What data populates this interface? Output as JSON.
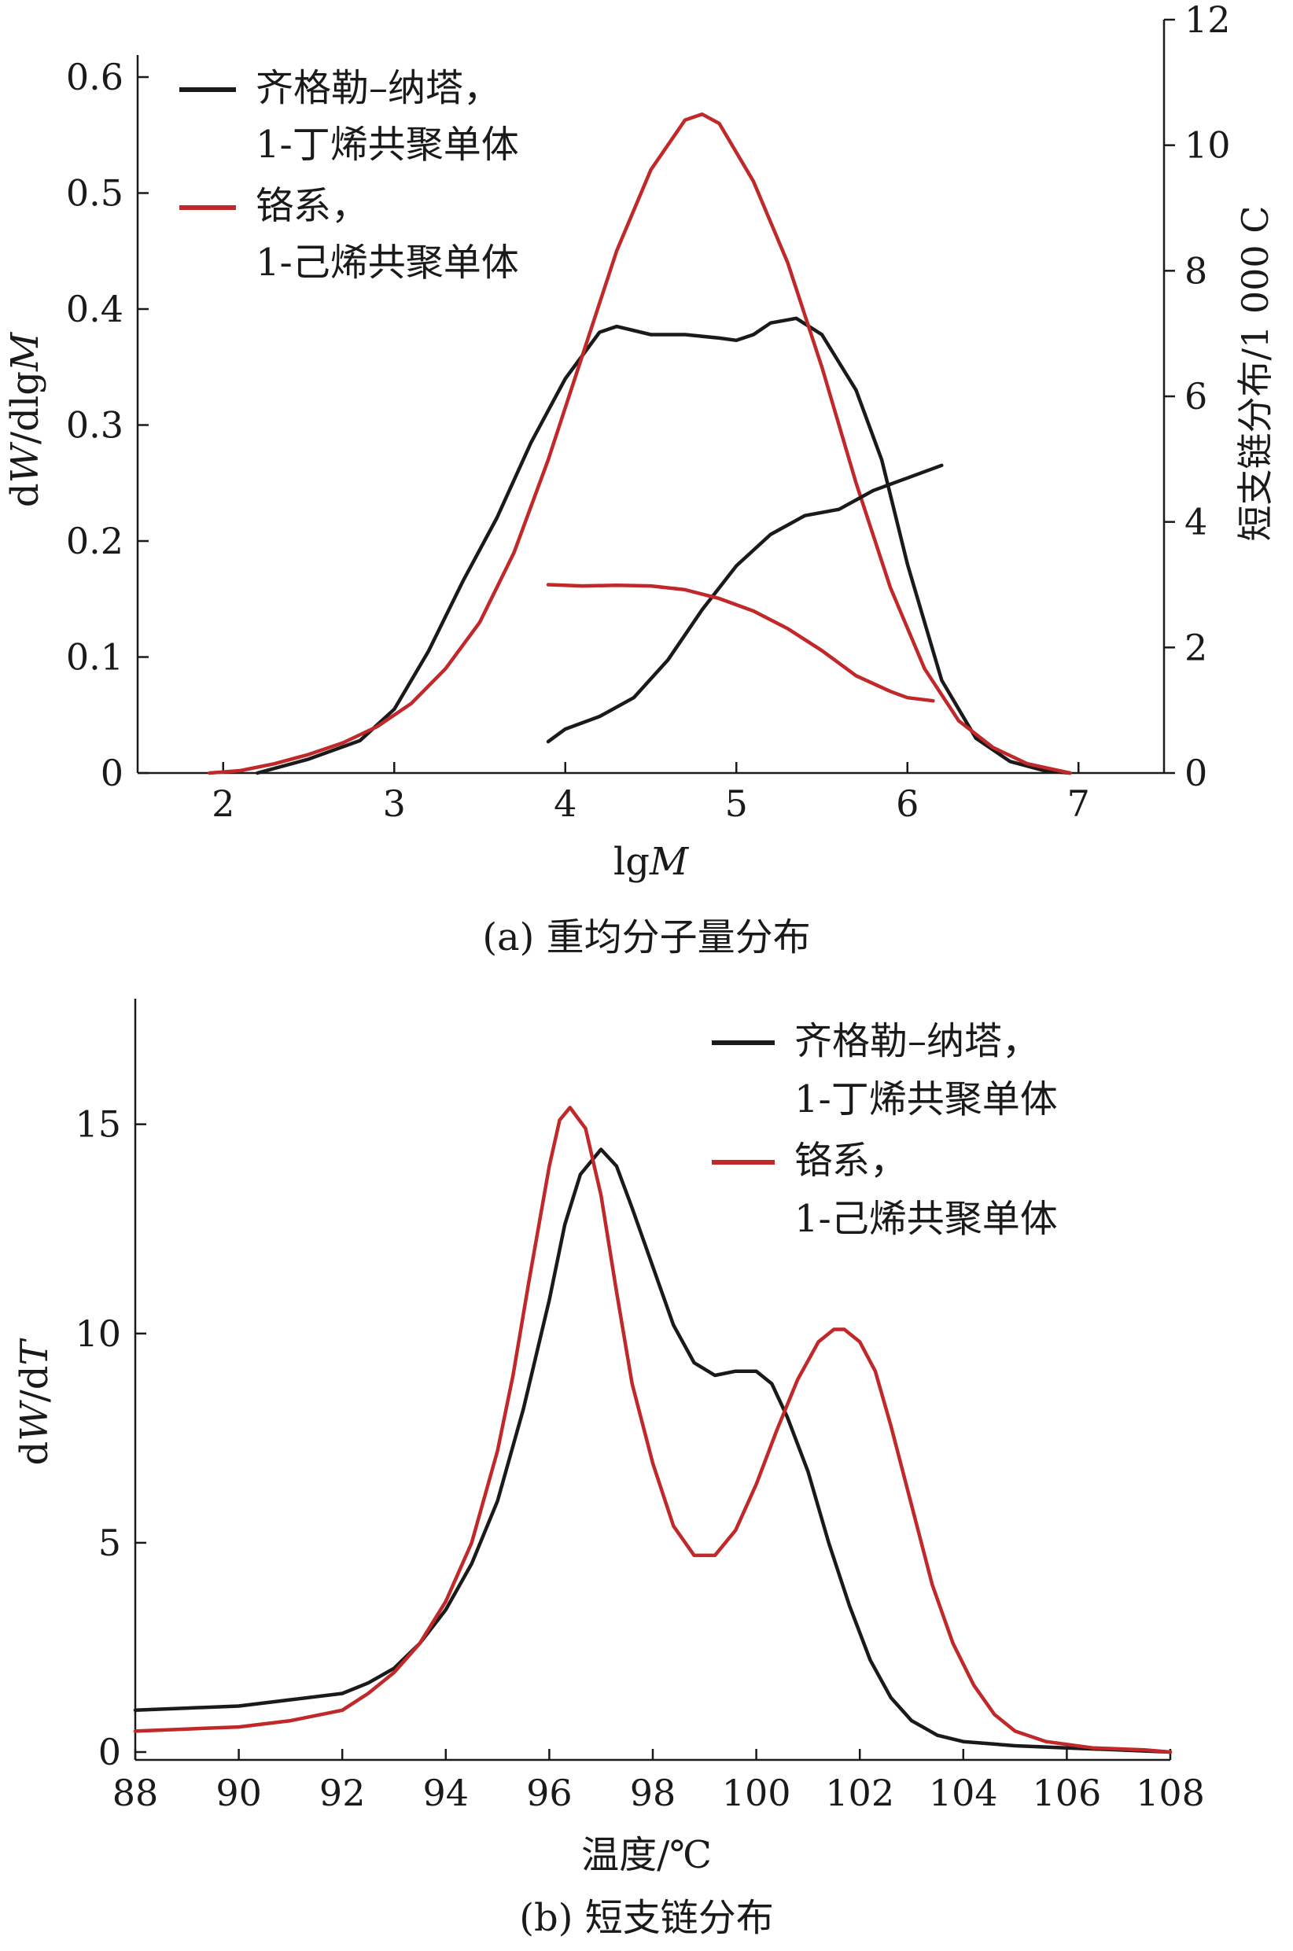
{
  "chart_data": [
    {
      "type": "line",
      "caption": "(a) 重均分子量分布",
      "xlabel_prefix": "lg",
      "xlabel_italic": "M",
      "ylabel_d1": "d",
      "ylabel_W": "W",
      "ylabel_mid": "/dlg",
      "ylabel_M": "M",
      "y2label": "短支链分布/1 000 C",
      "xlim": [
        1.5,
        7.5
      ],
      "ylim": [
        0,
        0.6
      ],
      "y2lim": [
        0,
        12
      ],
      "xticks": [
        2,
        3,
        4,
        5,
        6,
        7
      ],
      "yticks": [
        0,
        0.1,
        0.2,
        0.3,
        0.4,
        0.5,
        0.6
      ],
      "ytick_labels": [
        "0",
        "0.1",
        "0.2",
        "0.3",
        "0.4",
        "0.5",
        "0.6"
      ],
      "y2ticks": [
        0,
        2,
        4,
        6,
        8,
        10,
        12
      ],
      "legend_position": "top-left",
      "legend": [
        {
          "color": "#1a1a1a",
          "line1": "齐格勒–纳塔，",
          "line2": "1-丁烯共聚单体"
        },
        {
          "color": "#c0282a",
          "line1": "铬系，",
          "line2": "1-己烯共聚单体"
        }
      ],
      "series": [
        {
          "name": "齐格勒–纳塔，1-丁烯共聚单体",
          "color": "#1a1a1a",
          "axis": "left",
          "x": [
            2.2,
            2.5,
            2.8,
            3.0,
            3.2,
            3.4,
            3.6,
            3.8,
            4.0,
            4.2,
            4.3,
            4.5,
            4.7,
            4.9,
            5.0,
            5.1,
            5.2,
            5.35,
            5.5,
            5.7,
            5.85,
            6.0,
            6.2,
            6.4,
            6.6,
            6.8,
            6.95
          ],
          "y": [
            0.0,
            0.012,
            0.028,
            0.055,
            0.105,
            0.165,
            0.22,
            0.285,
            0.34,
            0.38,
            0.385,
            0.378,
            0.378,
            0.375,
            0.373,
            0.378,
            0.388,
            0.392,
            0.378,
            0.33,
            0.27,
            0.18,
            0.08,
            0.03,
            0.01,
            0.002,
            0.0
          ]
        },
        {
          "name": "铬系，1-己烯共聚单体",
          "color": "#c0282a",
          "axis": "left",
          "x": [
            1.92,
            2.1,
            2.3,
            2.5,
            2.7,
            2.9,
            3.1,
            3.3,
            3.5,
            3.7,
            3.9,
            4.1,
            4.3,
            4.5,
            4.7,
            4.8,
            4.9,
            5.1,
            5.3,
            5.5,
            5.7,
            5.9,
            6.1,
            6.3,
            6.5,
            6.7,
            6.95
          ],
          "y": [
            0.0,
            0.002,
            0.008,
            0.016,
            0.026,
            0.04,
            0.06,
            0.09,
            0.13,
            0.19,
            0.27,
            0.36,
            0.45,
            0.52,
            0.563,
            0.568,
            0.56,
            0.51,
            0.44,
            0.35,
            0.25,
            0.16,
            0.09,
            0.045,
            0.022,
            0.008,
            0.0
          ]
        },
        {
          "name": "齐格勒–纳塔 短支链",
          "color": "#1a1a1a",
          "axis": "right",
          "x": [
            3.9,
            4.0,
            4.2,
            4.4,
            4.6,
            4.8,
            5.0,
            5.2,
            5.4,
            5.6,
            5.8,
            6.0,
            6.1,
            6.2
          ],
          "y2": [
            0.5,
            0.7,
            0.9,
            1.2,
            1.8,
            2.6,
            3.3,
            3.8,
            4.1,
            4.2,
            4.5,
            4.7,
            4.8,
            4.9
          ]
        },
        {
          "name": "铬系 短支链",
          "color": "#c0282a",
          "axis": "right",
          "x": [
            3.9,
            4.1,
            4.3,
            4.5,
            4.7,
            4.9,
            5.1,
            5.3,
            5.5,
            5.7,
            5.9,
            6.0,
            6.15
          ],
          "y2": [
            3.0,
            2.98,
            2.99,
            2.98,
            2.92,
            2.78,
            2.58,
            2.3,
            1.95,
            1.55,
            1.3,
            1.2,
            1.15
          ]
        }
      ]
    },
    {
      "type": "line",
      "caption": "(b) 短支链分布",
      "xlabel": "温度/℃",
      "ylabel_d1": "d",
      "ylabel_W": "W",
      "ylabel_mid": "/d",
      "ylabel_T": "T",
      "xlim": [
        88,
        108
      ],
      "ylim": [
        0,
        18
      ],
      "xticks": [
        88,
        90,
        92,
        94,
        96,
        98,
        100,
        102,
        104,
        106,
        108
      ],
      "yticks": [
        0,
        5,
        10,
        15
      ],
      "legend_position": "top-right",
      "legend": [
        {
          "color": "#1a1a1a",
          "line1": "齐格勒–纳塔，",
          "line2": "1-丁烯共聚单体"
        },
        {
          "color": "#c0282a",
          "line1": "铬系，",
          "line2": "1-己烯共聚单体"
        }
      ],
      "series": [
        {
          "name": "齐格勒–纳塔，1-丁烯共聚单体",
          "color": "#1a1a1a",
          "x": [
            88,
            89,
            90,
            91,
            92,
            92.5,
            93,
            93.5,
            94,
            94.5,
            95,
            95.5,
            96,
            96.3,
            96.6,
            97,
            97.3,
            97.6,
            98,
            98.4,
            98.8,
            99.2,
            99.6,
            100,
            100.3,
            100.6,
            101,
            101.4,
            101.8,
            102.2,
            102.6,
            103,
            103.5,
            104,
            105,
            106,
            107,
            108
          ],
          "y": [
            1.0,
            1.05,
            1.1,
            1.25,
            1.4,
            1.65,
            2.0,
            2.6,
            3.4,
            4.5,
            6.0,
            8.2,
            10.8,
            12.6,
            13.8,
            14.4,
            14.0,
            13.0,
            11.6,
            10.2,
            9.3,
            9.0,
            9.1,
            9.1,
            8.8,
            8.0,
            6.7,
            5.0,
            3.5,
            2.2,
            1.3,
            0.75,
            0.4,
            0.25,
            0.15,
            0.1,
            0.05,
            0.0
          ]
        },
        {
          "name": "铬系，1-己烯共聚单体",
          "color": "#c0282a",
          "x": [
            88,
            89,
            90,
            91,
            92,
            92.5,
            93,
            93.5,
            94,
            94.5,
            95,
            95.3,
            95.6,
            96,
            96.2,
            96.4,
            96.7,
            97,
            97.3,
            97.6,
            98,
            98.4,
            98.8,
            99.2,
            99.6,
            100,
            100.4,
            100.8,
            101.2,
            101.5,
            101.7,
            102,
            102.3,
            102.6,
            103,
            103.4,
            103.8,
            104.2,
            104.6,
            105,
            105.6,
            106.5,
            107.5,
            108
          ],
          "y": [
            0.5,
            0.55,
            0.6,
            0.75,
            1.0,
            1.4,
            1.9,
            2.6,
            3.6,
            5.0,
            7.2,
            9.0,
            11.2,
            14.0,
            15.1,
            15.4,
            14.9,
            13.3,
            11.0,
            8.8,
            6.9,
            5.4,
            4.7,
            4.7,
            5.3,
            6.4,
            7.7,
            8.9,
            9.8,
            10.1,
            10.1,
            9.8,
            9.1,
            7.8,
            5.9,
            4.0,
            2.6,
            1.6,
            0.9,
            0.5,
            0.25,
            0.1,
            0.05,
            0.0
          ]
        }
      ]
    }
  ]
}
